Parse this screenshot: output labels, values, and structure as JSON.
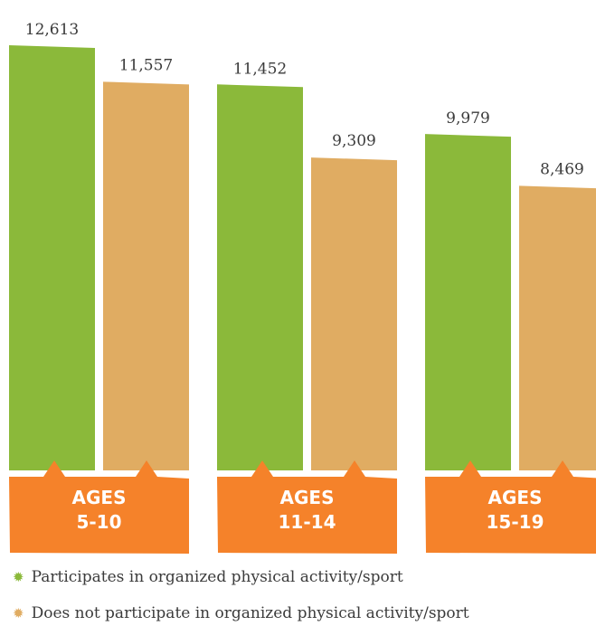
{
  "chart_data": {
    "type": "bar",
    "categories": [
      [
        "AGES",
        "5-10"
      ],
      [
        "AGES",
        "11-14"
      ],
      [
        "AGES",
        "15-19"
      ]
    ],
    "series": [
      {
        "name": "Participates in organized physical activity/sport",
        "color": "#8bb93a",
        "values": [
          12613,
          11452,
          9979
        ]
      },
      {
        "name": "Does not participate in organized physical activity/sport",
        "color": "#e0ac62",
        "values": [
          11557,
          9309,
          8469
        ]
      }
    ],
    "value_labels": [
      [
        "12,613",
        "11,557"
      ],
      [
        "11,452",
        "9,309"
      ],
      [
        "9,979",
        "8,469"
      ]
    ],
    "ylim": [
      0,
      13000
    ],
    "label_box_color": "#f5822a",
    "legend_position": "bottom-left",
    "grid": false
  }
}
